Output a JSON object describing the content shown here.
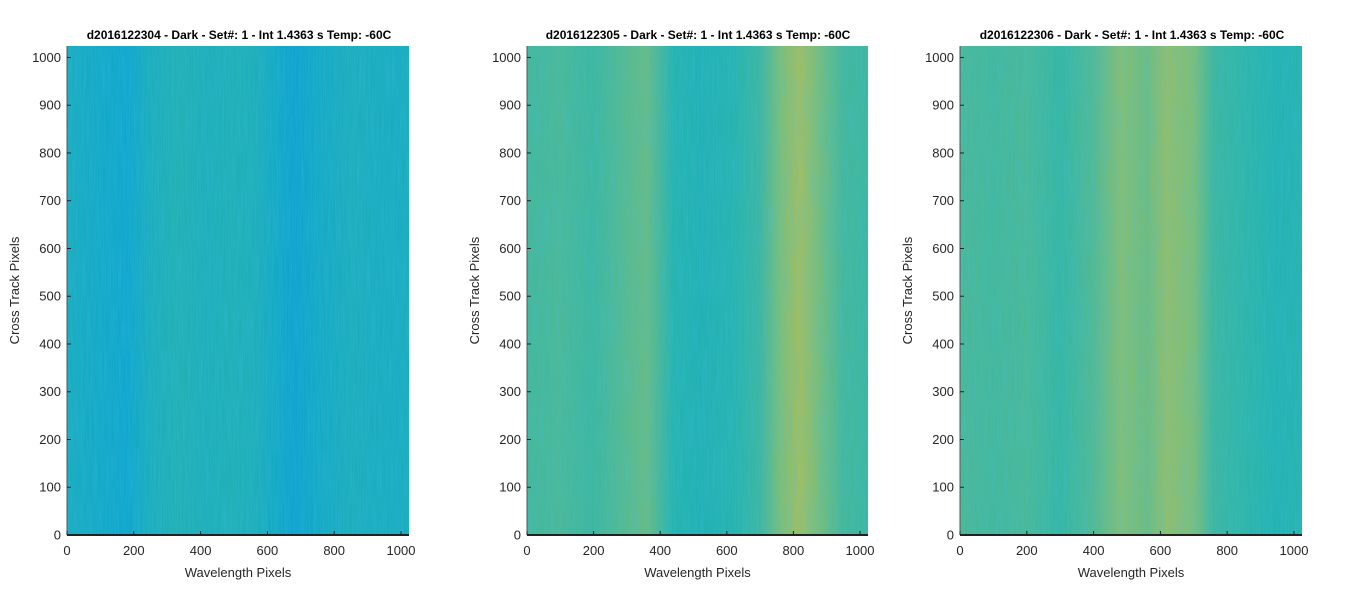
{
  "chart_data": [
    {
      "type": "heatmap",
      "title": "d2016122304 - Dark - Set#: 1 - Int 1.4363 s Temp: -60C",
      "xlabel": "Wavelength Pixels",
      "ylabel": "Cross Track Pixels",
      "xlim": [
        0,
        1024
      ],
      "ylim": [
        0,
        1024
      ],
      "xticks": [
        "0",
        "200",
        "400",
        "600",
        "800",
        "1000"
      ],
      "yticks": [
        "0",
        "100",
        "200",
        "300",
        "400",
        "500",
        "600",
        "700",
        "800",
        "900",
        "1000"
      ],
      "colormap": "parula",
      "column_profile": [
        {
          "x": 0,
          "v": 0.36
        },
        {
          "x": 100,
          "v": 0.3
        },
        {
          "x": 180,
          "v": 0.26
        },
        {
          "x": 250,
          "v": 0.38
        },
        {
          "x": 330,
          "v": 0.44
        },
        {
          "x": 420,
          "v": 0.4
        },
        {
          "x": 500,
          "v": 0.42
        },
        {
          "x": 560,
          "v": 0.4
        },
        {
          "x": 620,
          "v": 0.32
        },
        {
          "x": 680,
          "v": 0.22
        },
        {
          "x": 760,
          "v": 0.32
        },
        {
          "x": 850,
          "v": 0.38
        },
        {
          "x": 950,
          "v": 0.36
        },
        {
          "x": 1024,
          "v": 0.36
        }
      ]
    },
    {
      "type": "heatmap",
      "title": "d2016122305 - Dark - Set#: 1 - Int 1.4363 s Temp: -60C",
      "xlabel": "Wavelength Pixels",
      "ylabel": "Cross Track Pixels",
      "xlim": [
        0,
        1024
      ],
      "ylim": [
        0,
        1024
      ],
      "xticks": [
        "0",
        "200",
        "400",
        "600",
        "800",
        "1000"
      ],
      "yticks": [
        "0",
        "100",
        "200",
        "300",
        "400",
        "500",
        "600",
        "700",
        "800",
        "900",
        "1000"
      ],
      "colormap": "parula",
      "column_profile": [
        {
          "x": 0,
          "v": 0.58
        },
        {
          "x": 100,
          "v": 0.6
        },
        {
          "x": 200,
          "v": 0.56
        },
        {
          "x": 300,
          "v": 0.64
        },
        {
          "x": 360,
          "v": 0.68
        },
        {
          "x": 440,
          "v": 0.48
        },
        {
          "x": 520,
          "v": 0.44
        },
        {
          "x": 620,
          "v": 0.48
        },
        {
          "x": 700,
          "v": 0.56
        },
        {
          "x": 760,
          "v": 0.74
        },
        {
          "x": 820,
          "v": 0.84
        },
        {
          "x": 880,
          "v": 0.72
        },
        {
          "x": 950,
          "v": 0.58
        },
        {
          "x": 1024,
          "v": 0.56
        }
      ]
    },
    {
      "type": "heatmap",
      "title": "d2016122306 - Dark - Set#: 1 - Int 1.4363 s Temp: -60C",
      "xlabel": "Wavelength Pixels",
      "ylabel": "Cross Track Pixels",
      "xlim": [
        0,
        1024
      ],
      "ylim": [
        0,
        1024
      ],
      "xticks": [
        "0",
        "200",
        "400",
        "600",
        "800",
        "1000"
      ],
      "yticks": [
        "0",
        "100",
        "200",
        "300",
        "400",
        "500",
        "600",
        "700",
        "800",
        "900",
        "1000"
      ],
      "colormap": "parula",
      "column_profile": [
        {
          "x": 0,
          "v": 0.6
        },
        {
          "x": 100,
          "v": 0.58
        },
        {
          "x": 200,
          "v": 0.6
        },
        {
          "x": 300,
          "v": 0.54
        },
        {
          "x": 400,
          "v": 0.62
        },
        {
          "x": 480,
          "v": 0.76
        },
        {
          "x": 560,
          "v": 0.7
        },
        {
          "x": 620,
          "v": 0.8
        },
        {
          "x": 700,
          "v": 0.74
        },
        {
          "x": 760,
          "v": 0.56
        },
        {
          "x": 850,
          "v": 0.52
        },
        {
          "x": 950,
          "v": 0.46
        },
        {
          "x": 1024,
          "v": 0.48
        }
      ]
    }
  ]
}
